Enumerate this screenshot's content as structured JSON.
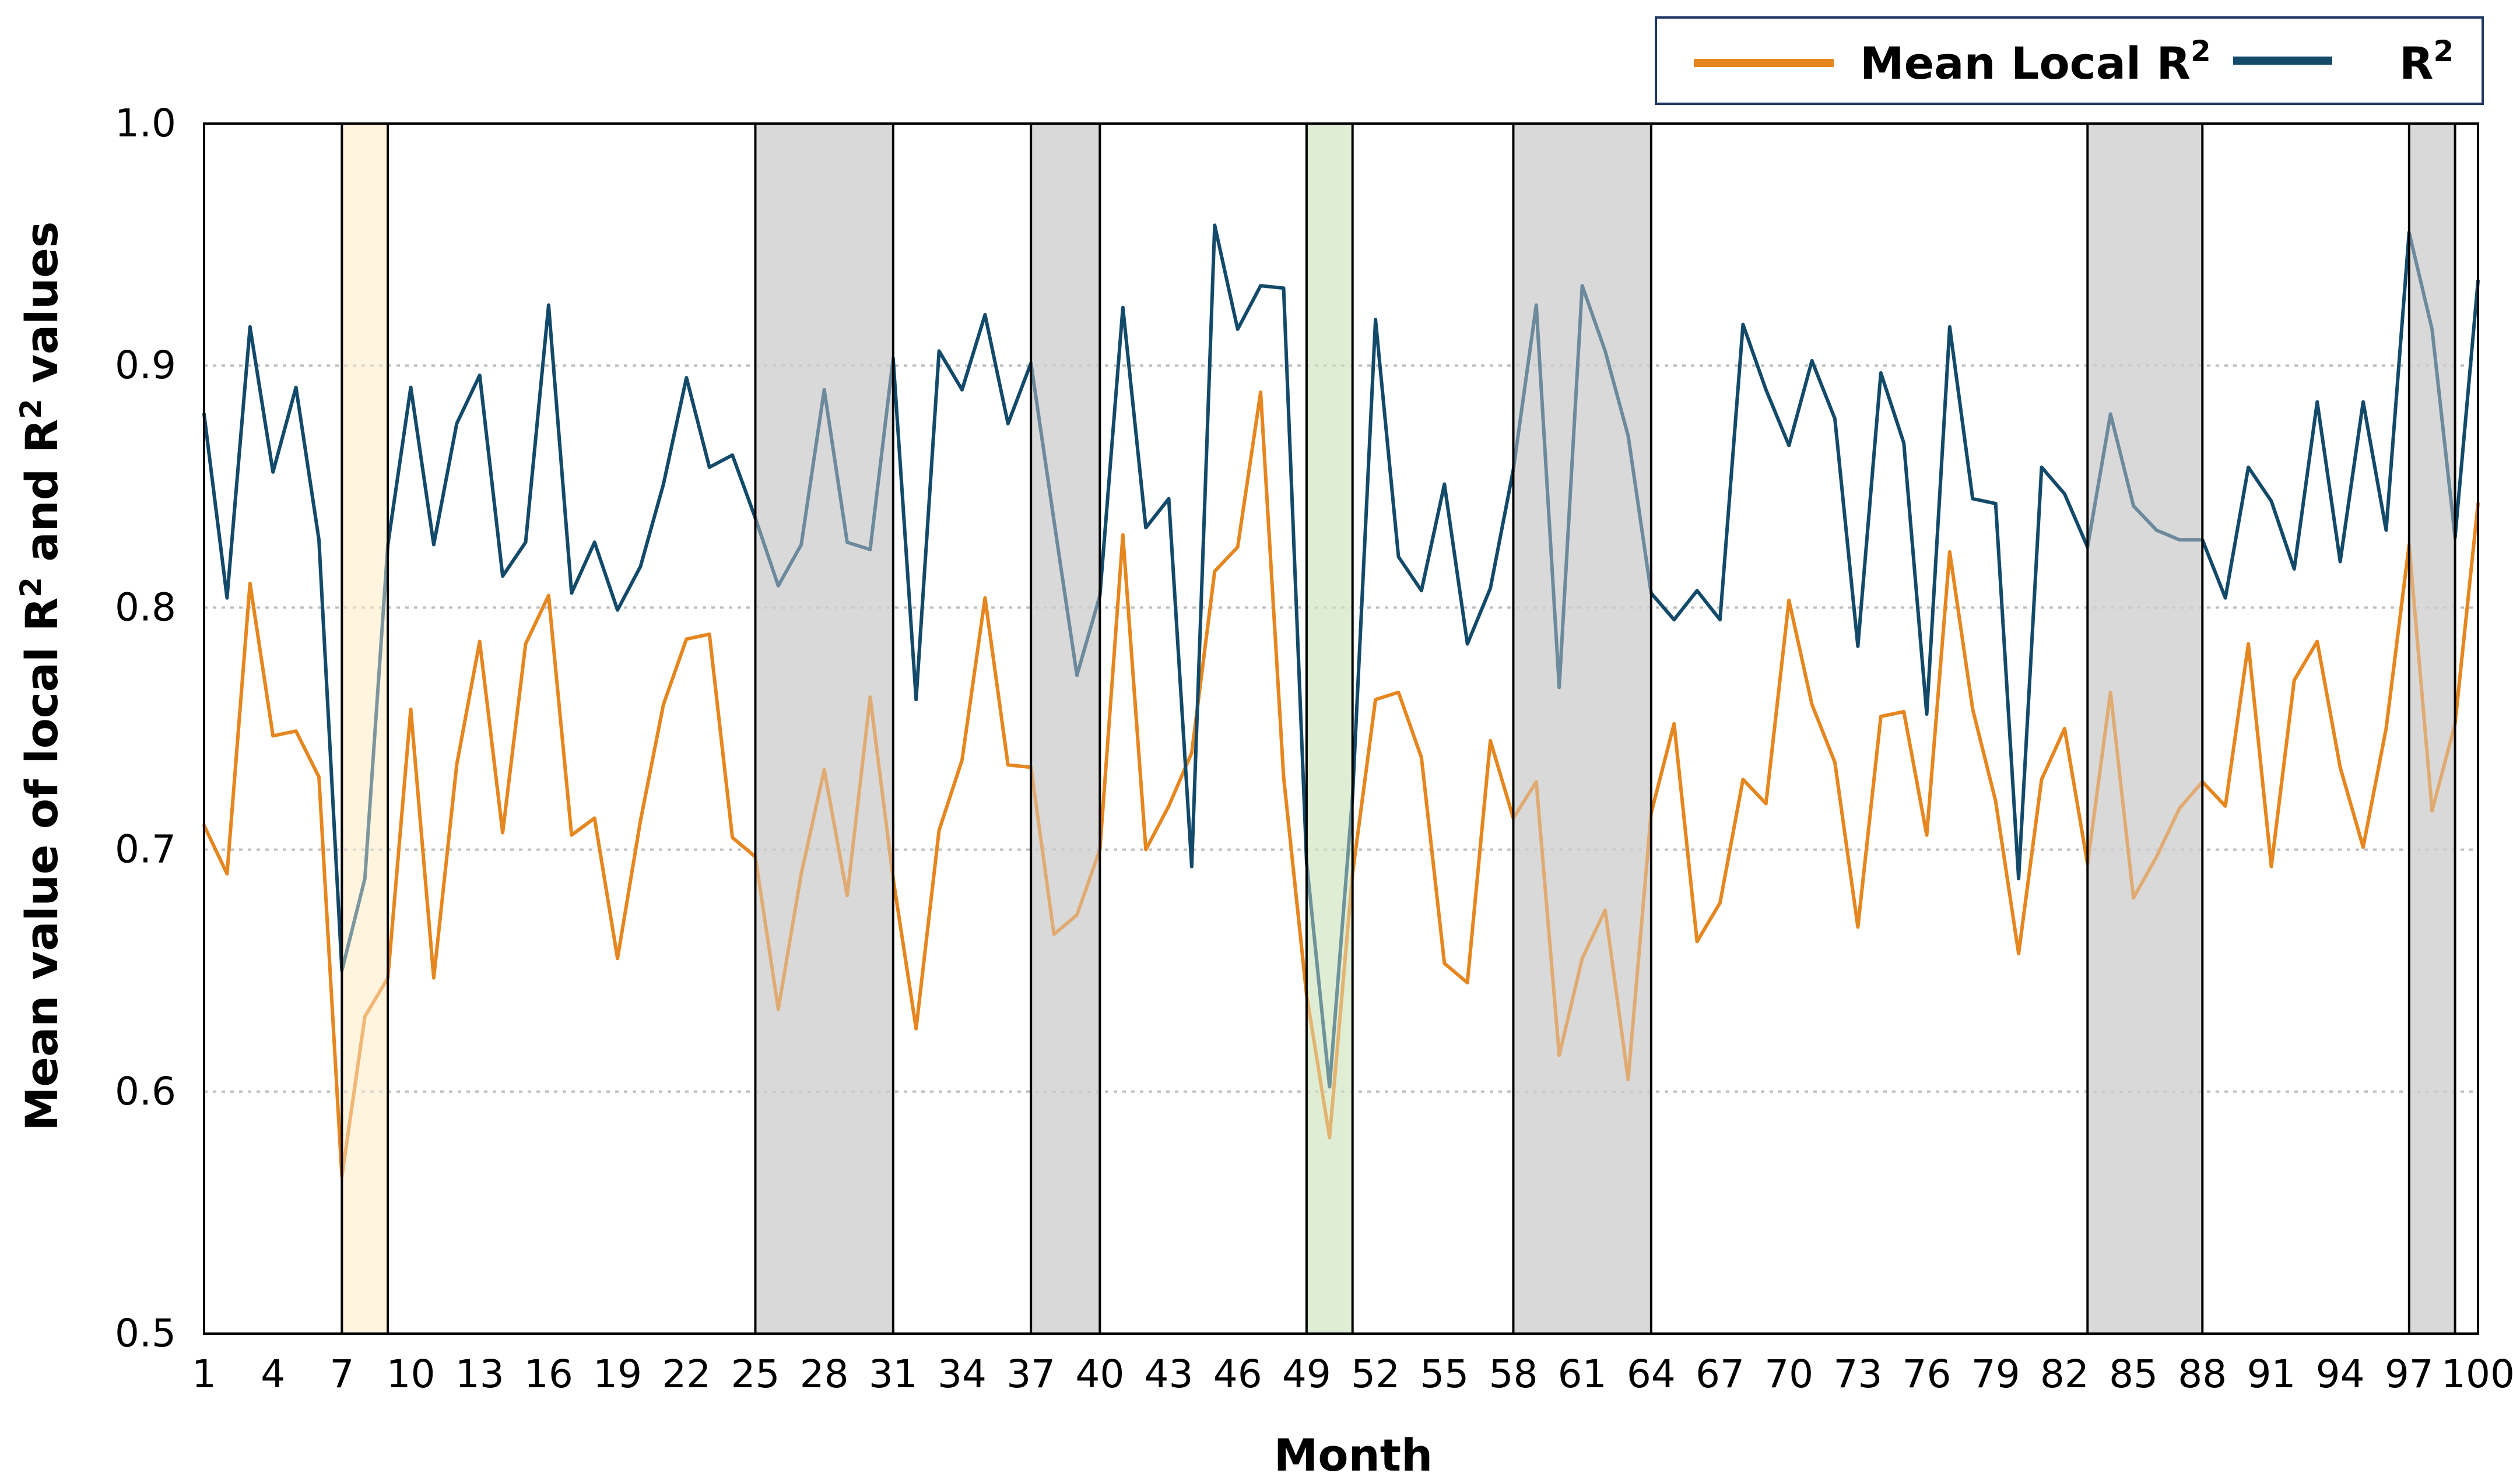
{
  "chart_data": {
    "type": "line",
    "xlabel": "Month",
    "ylabel_parts": [
      "Mean value of local R",
      "2",
      " and R",
      "2",
      " values"
    ],
    "ylim": [
      0.5,
      1.0
    ],
    "yticks": [
      0.5,
      0.6,
      0.7,
      0.8,
      0.9,
      1.0
    ],
    "yticks_labels": [
      "0.5",
      "0.6",
      "0.7",
      "0.8",
      "0.9",
      "1.0"
    ],
    "xlim": [
      1,
      100
    ],
    "xticks": [
      1,
      4,
      7,
      10,
      13,
      16,
      19,
      22,
      25,
      28,
      31,
      34,
      37,
      40,
      43,
      46,
      49,
      52,
      55,
      58,
      61,
      64,
      67,
      70,
      73,
      76,
      79,
      82,
      85,
      88,
      91,
      94,
      97,
      100
    ],
    "xticks_labels": [
      "1",
      "4",
      "7",
      "10",
      "13",
      "16",
      "19",
      "22",
      "25",
      "28",
      "31",
      "34",
      "37",
      "40",
      "43",
      "46",
      "49",
      "52",
      "55",
      "58",
      "61",
      "64",
      "67",
      "70",
      "73",
      "76",
      "79",
      "82",
      "85",
      "88",
      "91",
      "94",
      "97",
      "100"
    ],
    "grid": "horizontal-dotted",
    "legend_position": "top-right",
    "legend": [
      {
        "name": "Mean Local R",
        "sup": "2",
        "color": "#E6861F"
      },
      {
        "name": "R",
        "sup": "2",
        "color": "#134A6A"
      }
    ],
    "highlight_bands": [
      {
        "from": 7,
        "to": 9,
        "color": "#FFF5DD"
      },
      {
        "from": 25,
        "to": 31,
        "color": "#D9D9D9"
      },
      {
        "from": 37,
        "to": 40,
        "color": "#D9D9D9"
      },
      {
        "from": 49,
        "to": 51,
        "color": "#DFEDD4"
      },
      {
        "from": 58,
        "to": 64,
        "color": "#D9D9D9"
      },
      {
        "from": 83,
        "to": 88,
        "color": "#D9D9D9"
      },
      {
        "from": 97,
        "to": 99,
        "color": "#D9D9D9"
      }
    ],
    "series": [
      {
        "name": "Mean Local R2",
        "color": "#E6861F",
        "x": [
          1,
          2,
          3,
          4,
          5,
          6,
          7,
          8,
          9,
          10,
          11,
          12,
          13,
          14,
          15,
          16,
          17,
          18,
          19,
          20,
          21,
          22,
          23,
          24,
          25,
          26,
          27,
          28,
          29,
          30,
          31,
          32,
          33,
          34,
          35,
          36,
          37,
          38,
          39,
          40,
          41,
          42,
          43,
          44,
          45,
          46,
          47,
          48,
          49,
          50,
          51,
          52,
          53,
          54,
          55,
          56,
          57,
          58,
          59,
          60,
          61,
          62,
          63,
          64,
          65,
          66,
          67,
          68,
          69,
          70,
          71,
          72,
          73,
          74,
          75,
          76,
          77,
          78,
          79,
          80,
          81,
          82,
          83,
          84,
          85,
          86,
          87,
          88,
          89,
          90,
          91,
          92,
          93,
          94,
          95,
          96,
          97,
          98,
          99,
          100
        ],
        "values": [
          0.71,
          0.69,
          0.81,
          0.747,
          0.749,
          0.73,
          0.565,
          0.631,
          0.647,
          0.758,
          0.647,
          0.735,
          0.786,
          0.707,
          0.785,
          0.805,
          0.706,
          0.713,
          0.655,
          0.712,
          0.76,
          0.787,
          0.789,
          0.705,
          0.697,
          0.634,
          0.69,
          0.733,
          0.681,
          0.763,
          0.688,
          0.626,
          0.708,
          0.737,
          0.804,
          0.735,
          0.734,
          0.665,
          0.673,
          0.7,
          0.83,
          0.7,
          0.718,
          0.74,
          0.815,
          0.825,
          0.889,
          0.73,
          0.64,
          0.581,
          0.69,
          0.762,
          0.765,
          0.738,
          0.653,
          0.645,
          0.745,
          0.713,
          0.728,
          0.615,
          0.655,
          0.675,
          0.605,
          0.715,
          0.752,
          0.662,
          0.678,
          0.729,
          0.719,
          0.803,
          0.76,
          0.736,
          0.668,
          0.755,
          0.757,
          0.706,
          0.823,
          0.758,
          0.72,
          0.657,
          0.729,
          0.75,
          0.694,
          0.765,
          0.68,
          0.697,
          0.717,
          0.728,
          0.718,
          0.785,
          0.693,
          0.77,
          0.786,
          0.734,
          0.701,
          0.75,
          0.826,
          0.716,
          0.752,
          0.843
        ]
      },
      {
        "name": "R2",
        "color": "#134A6A",
        "x": [
          1,
          2,
          3,
          4,
          5,
          6,
          7,
          8,
          9,
          10,
          11,
          12,
          13,
          14,
          15,
          16,
          17,
          18,
          19,
          20,
          21,
          22,
          23,
          24,
          25,
          26,
          27,
          28,
          29,
          30,
          31,
          32,
          33,
          34,
          35,
          36,
          37,
          38,
          39,
          40,
          41,
          42,
          43,
          44,
          45,
          46,
          47,
          48,
          49,
          50,
          51,
          52,
          53,
          54,
          55,
          56,
          57,
          58,
          59,
          60,
          61,
          62,
          63,
          64,
          65,
          66,
          67,
          68,
          69,
          70,
          71,
          72,
          73,
          74,
          75,
          76,
          77,
          78,
          79,
          80,
          81,
          82,
          83,
          84,
          85,
          86,
          87,
          88,
          89,
          90,
          91,
          92,
          93,
          94,
          95,
          96,
          97,
          98,
          99,
          100
        ],
        "values": [
          0.88,
          0.804,
          0.916,
          0.856,
          0.891,
          0.828,
          0.65,
          0.688,
          0.826,
          0.891,
          0.826,
          0.876,
          0.896,
          0.813,
          0.827,
          0.925,
          0.806,
          0.827,
          0.799,
          0.817,
          0.851,
          0.895,
          0.858,
          0.863,
          0.837,
          0.809,
          0.826,
          0.89,
          0.827,
          0.824,
          0.903,
          0.762,
          0.906,
          0.89,
          0.921,
          0.876,
          0.901,
          0.836,
          0.772,
          0.805,
          0.924,
          0.833,
          0.845,
          0.693,
          0.958,
          0.915,
          0.933,
          0.932,
          0.695,
          0.602,
          0.722,
          0.919,
          0.821,
          0.807,
          0.851,
          0.785,
          0.808,
          0.857,
          0.925,
          0.767,
          0.933,
          0.906,
          0.871,
          0.806,
          0.795,
          0.807,
          0.795,
          0.917,
          0.89,
          0.867,
          0.902,
          0.878,
          0.784,
          0.897,
          0.868,
          0.756,
          0.916,
          0.845,
          0.843,
          0.688,
          0.858,
          0.847,
          0.825,
          0.88,
          0.842,
          0.832,
          0.828,
          0.828,
          0.804,
          0.858,
          0.844,
          0.816,
          0.885,
          0.819,
          0.885,
          0.832,
          0.955,
          0.915,
          0.829,
          0.935
        ]
      }
    ]
  }
}
